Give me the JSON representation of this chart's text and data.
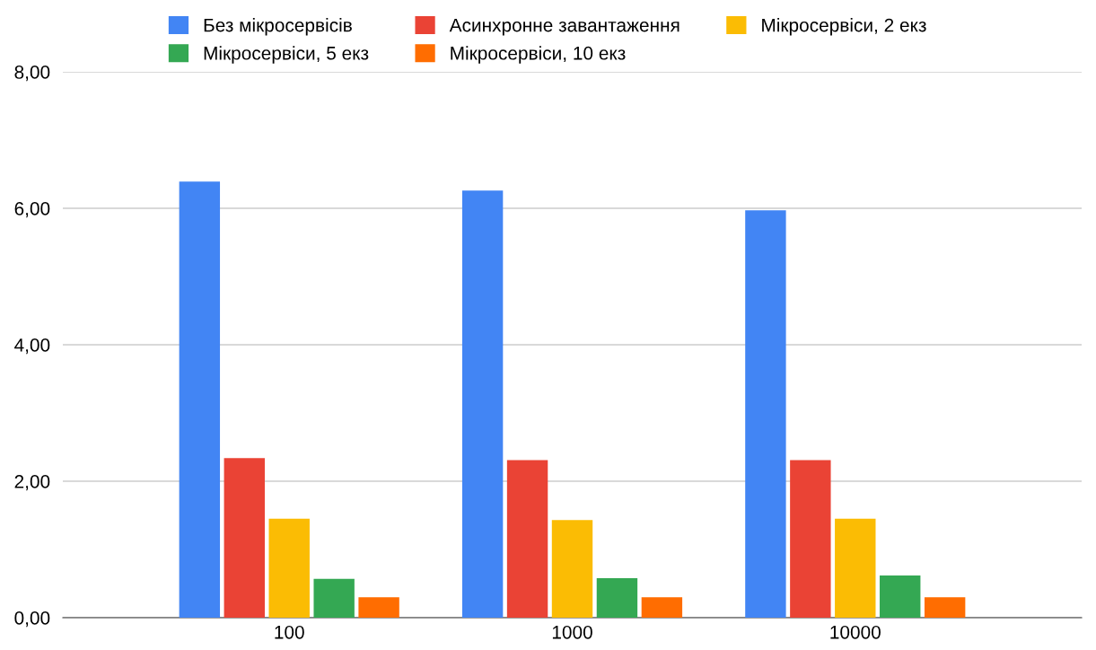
{
  "chart_data": {
    "type": "bar",
    "categories": [
      "100",
      "1000",
      "10000"
    ],
    "series": [
      {
        "name": "Без мікросервісів",
        "color": "#4285f4",
        "values": [
          6.39,
          6.26,
          5.97
        ]
      },
      {
        "name": "Асинхронне завантаження",
        "color": "#ea4335",
        "values": [
          2.34,
          2.31,
          2.31
        ]
      },
      {
        "name": "Мікросервіси, 2 екз",
        "color": "#fbbc04",
        "values": [
          1.45,
          1.43,
          1.45
        ]
      },
      {
        "name": "Мікросервіси, 5 екз",
        "color": "#34a853",
        "values": [
          0.57,
          0.58,
          0.62
        ]
      },
      {
        "name": "Мікросервіси, 10 екз",
        "color": "#ff6d01",
        "values": [
          0.3,
          0.3,
          0.3
        ]
      }
    ],
    "ylim": [
      0,
      8
    ],
    "yticks": [
      {
        "value": 0,
        "label": "0,00"
      },
      {
        "value": 2,
        "label": "2,00"
      },
      {
        "value": 4,
        "label": "4,00"
      },
      {
        "value": 6,
        "label": "6,00"
      },
      {
        "value": 8,
        "label": "8,00"
      }
    ],
    "grid": "y",
    "legend": "top"
  }
}
